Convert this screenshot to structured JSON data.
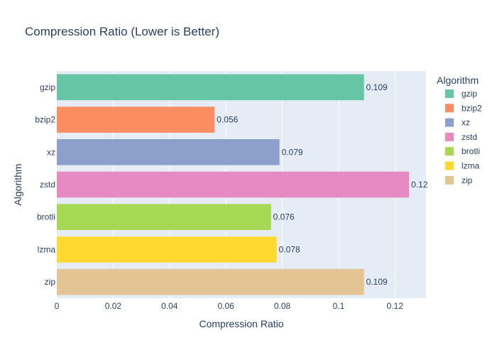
{
  "chart_data": {
    "type": "bar",
    "orientation": "horizontal",
    "title": "Compression Ratio (Lower is Better)",
    "xlabel": "Compression Ratio",
    "ylabel": "Algorithm",
    "xlim": [
      0,
      0.131
    ],
    "x_ticks": [
      0,
      0.02,
      0.04,
      0.06,
      0.08,
      0.1,
      0.12
    ],
    "x_tick_labels": [
      "0",
      "0.02",
      "0.04",
      "0.06",
      "0.08",
      "0.1",
      "0.12"
    ],
    "grid": true,
    "legend_position": "right",
    "legend_title": "Algorithm",
    "categories": [
      "gzip",
      "bzip2",
      "xz",
      "zstd",
      "brotli",
      "lzma",
      "zip"
    ],
    "values": [
      0.109,
      0.056,
      0.079,
      0.125,
      0.076,
      0.078,
      0.109
    ],
    "value_labels": [
      "0.109",
      "0.056",
      "0.079",
      "0.12",
      "0.076",
      "0.078",
      "0.109"
    ],
    "colors": [
      "#66c5a5",
      "#fc8d62",
      "#8da0cb",
      "#e78ac3",
      "#a6d854",
      "#ffd92f",
      "#e5c494"
    ]
  }
}
